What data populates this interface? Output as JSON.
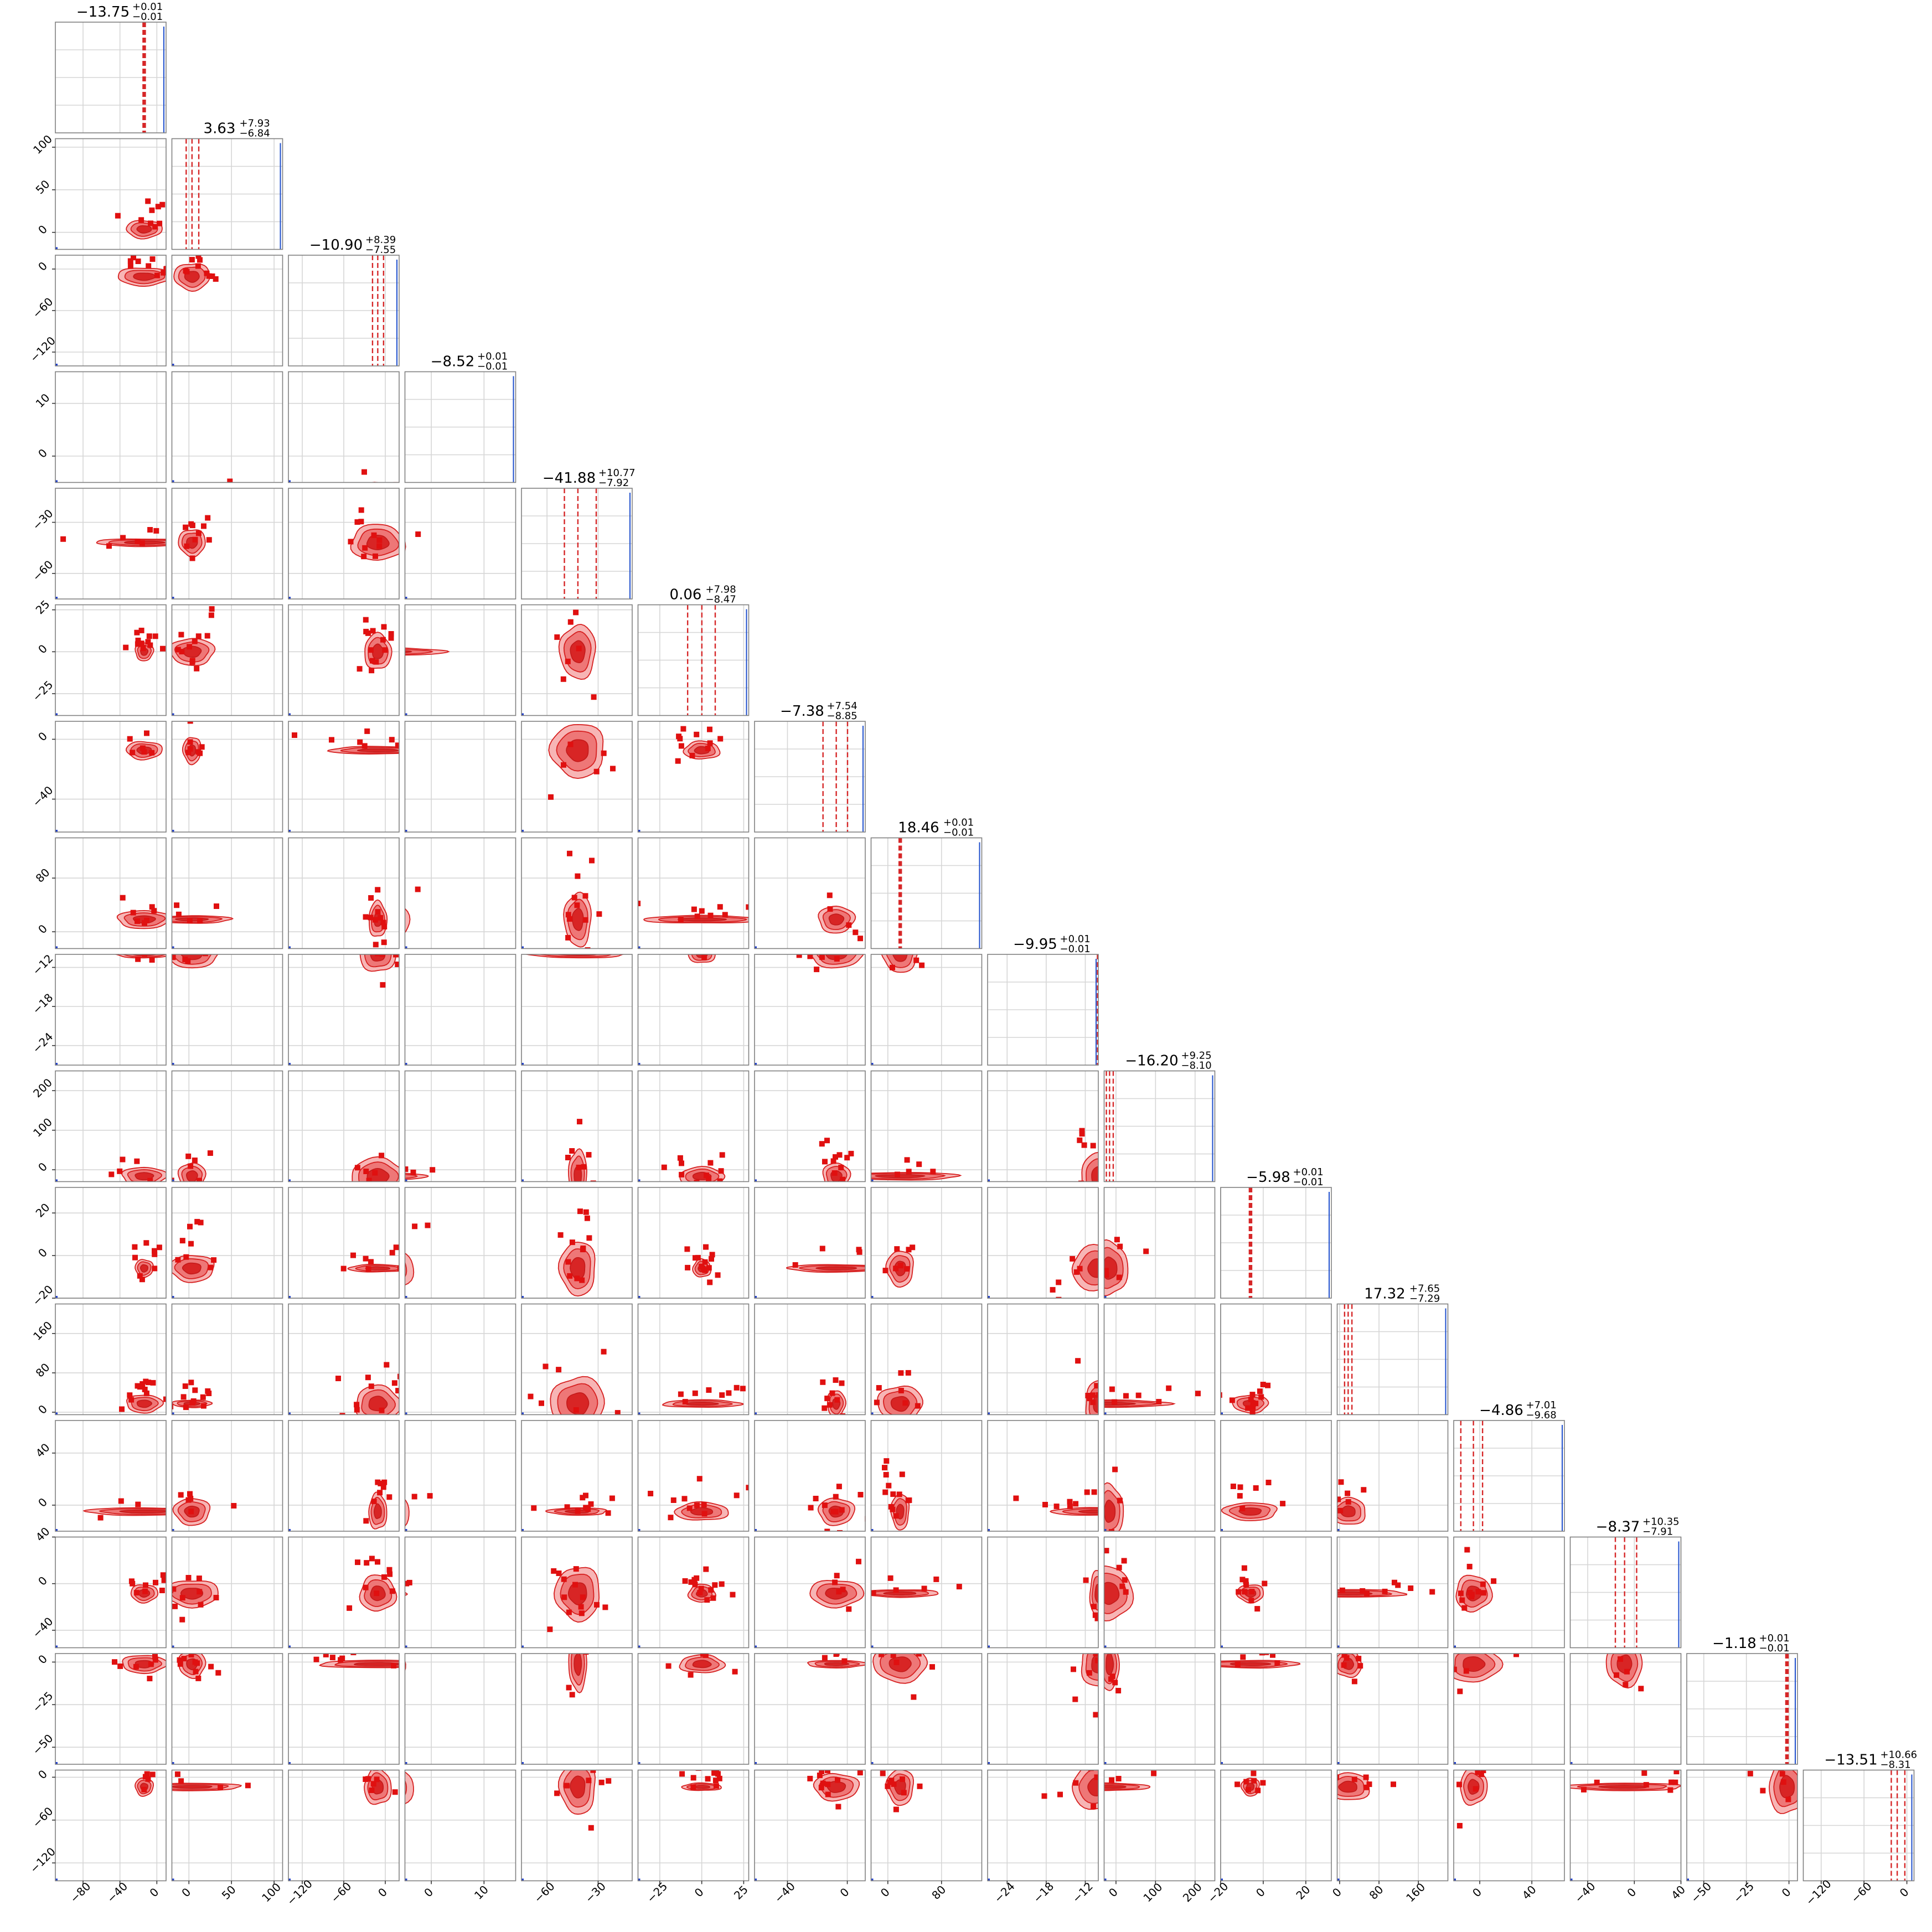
{
  "chart_data": {
    "type": "scatter",
    "subtype": "corner-plot",
    "colors": {
      "contour": "#d62728",
      "points": "#e01010",
      "median_lines": "#d62728",
      "edge_histogram": "#1f3fcc",
      "grid": "#d6d6d6"
    },
    "grid": true,
    "parameters": [
      {
        "title": {
          "value": "−13.75",
          "plus": "+0.01",
          "minus": "−0.01"
        },
        "range": [
          -110,
          10
        ],
        "ticks": [
          -80,
          -40,
          0
        ],
        "tick_labels": [
          "−80",
          "−40",
          "0"
        ],
        "median": -13.75,
        "q_low": -13.76,
        "q_high": -13.74
      },
      {
        "title": {
          "value": "3.63",
          "plus": "+7.93",
          "minus": "−6.84"
        },
        "range": [
          -20,
          110
        ],
        "ticks": [
          0,
          50,
          100
        ],
        "tick_labels": [
          "0",
          "50",
          "100"
        ],
        "median": 3.63,
        "q_low": -3.21,
        "q_high": 11.56
      },
      {
        "title": {
          "value": "−10.90",
          "plus": "+8.39",
          "minus": "−7.55"
        },
        "range": [
          -140,
          20
        ],
        "ticks": [
          -120,
          -60,
          0
        ],
        "tick_labels": [
          "−120",
          "−60",
          "0"
        ],
        "median": -10.9,
        "q_low": -18.45,
        "q_high": -2.51
      },
      {
        "title": {
          "value": "−8.52",
          "plus": "+0.01",
          "minus": "−0.01"
        },
        "range": [
          -5,
          16
        ],
        "ticks": [
          0,
          10
        ],
        "tick_labels": [
          "0",
          "10"
        ],
        "median": -8.52,
        "q_low": -8.53,
        "q_high": -8.51
      },
      {
        "title": {
          "value": "−41.88",
          "plus": "+10.77",
          "minus": "−7.92"
        },
        "range": [
          -75,
          -10
        ],
        "ticks": [
          -60,
          -30
        ],
        "tick_labels": [
          "−60",
          "−30"
        ],
        "median": -41.88,
        "q_low": -49.8,
        "q_high": -31.11
      },
      {
        "title": {
          "value": "0.06",
          "plus": "+7.98",
          "minus": "−8.47"
        },
        "range": [
          -38,
          28
        ],
        "ticks": [
          -25,
          0,
          25
        ],
        "tick_labels": [
          "−25",
          "0",
          "25"
        ],
        "median": 0.06,
        "q_low": -8.41,
        "q_high": 8.04
      },
      {
        "title": {
          "value": "−7.38",
          "plus": "+7.54",
          "minus": "−8.85"
        },
        "range": [
          -62,
          12
        ],
        "ticks": [
          -40,
          0
        ],
        "tick_labels": [
          "−40",
          "0"
        ],
        "median": -7.38,
        "q_low": -16.23,
        "q_high": 0.16
      },
      {
        "title": {
          "value": "18.46",
          "plus": "+0.01",
          "minus": "−0.01"
        },
        "range": [
          -25,
          140
        ],
        "ticks": [
          0,
          80
        ],
        "tick_labels": [
          "0",
          "80"
        ],
        "median": 18.46,
        "q_low": 18.45,
        "q_high": 18.47
      },
      {
        "title": {
          "value": "−9.95",
          "plus": "+0.01",
          "minus": "−0.01"
        },
        "range": [
          -27,
          -10
        ],
        "ticks": [
          -24,
          -18,
          -12
        ],
        "tick_labels": [
          "−24",
          "−18",
          "−12"
        ],
        "median": -9.95,
        "q_low": -9.96,
        "q_high": -9.94
      },
      {
        "title": {
          "value": "−16.20",
          "plus": "+9.25",
          "minus": "−8.10"
        },
        "range": [
          -30,
          250
        ],
        "ticks": [
          0,
          100,
          200
        ],
        "tick_labels": [
          "0",
          "100",
          "200"
        ],
        "median": -16.2,
        "q_low": -24.3,
        "q_high": -6.95
      },
      {
        "title": {
          "value": "−5.98",
          "plus": "+0.01",
          "minus": "−0.01"
        },
        "range": [
          -20,
          32
        ],
        "ticks": [
          -20,
          0,
          20
        ],
        "tick_labels": [
          "−20",
          "0",
          "20"
        ],
        "median": -5.98,
        "q_low": -5.99,
        "q_high": -5.97
      },
      {
        "title": {
          "value": "17.32",
          "plus": "+7.65",
          "minus": "−7.29"
        },
        "range": [
          -5,
          220
        ],
        "ticks": [
          0,
          80,
          160
        ],
        "tick_labels": [
          "0",
          "80",
          "160"
        ],
        "median": 17.32,
        "q_low": 10.03,
        "q_high": 24.97
      },
      {
        "title": {
          "value": "−4.86",
          "plus": "+7.01",
          "minus": "−9.68"
        },
        "range": [
          -20,
          65
        ],
        "ticks": [
          0,
          40
        ],
        "tick_labels": [
          "0",
          "40"
        ],
        "median": -4.86,
        "q_low": -14.54,
        "q_high": 2.15
      },
      {
        "title": {
          "value": "−8.37",
          "plus": "+10.35",
          "minus": "−7.91"
        },
        "range": [
          -55,
          40
        ],
        "ticks": [
          -40,
          0,
          40
        ],
        "tick_labels": [
          "−40",
          "0",
          "40"
        ],
        "median": -8.37,
        "q_low": -16.28,
        "q_high": 1.98
      },
      {
        "title": {
          "value": "−1.18",
          "plus": "+0.01",
          "minus": "−0.01"
        },
        "range": [
          -60,
          5
        ],
        "ticks": [
          -50,
          -25,
          0
        ],
        "tick_labels": [
          "−50",
          "−25",
          "0"
        ],
        "median": -1.18,
        "q_low": -1.19,
        "q_high": -1.17
      },
      {
        "title": {
          "value": "−13.51",
          "plus": "+10.66",
          "minus": "−8.31"
        },
        "range": [
          -145,
          10
        ],
        "ticks": [
          -120,
          -60,
          0
        ],
        "tick_labels": [
          "−120",
          "−60",
          "0"
        ],
        "median": -13.51,
        "q_low": -21.82,
        "q_high": -2.85
      }
    ]
  }
}
